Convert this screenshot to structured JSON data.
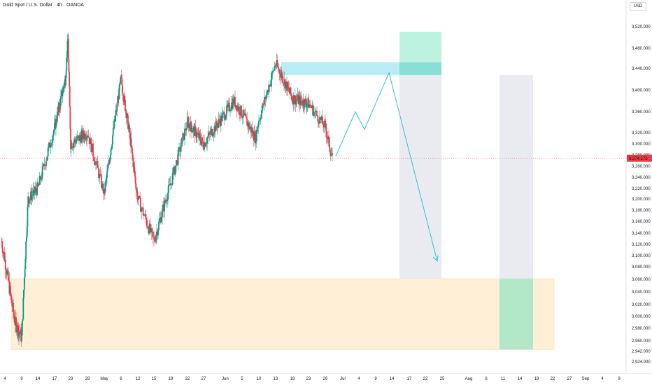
{
  "header": {
    "title": "Gold Spot / U.S. Dollar · 4h · OANDA",
    "currency_button": "USD"
  },
  "price_axis": {
    "ticks": [
      "3,520.000",
      "3,480.000",
      "3,440.000",
      "3,400.000",
      "3,360.000",
      "3,320.000",
      "3,300.000",
      "3,280.000",
      "3,260.000",
      "3,240.000",
      "3,220.000",
      "3,200.000",
      "3,180.000",
      "3,160.000",
      "3,140.000",
      "3,120.000",
      "3,100.000",
      "3,080.000",
      "3,060.000",
      "3,040.000",
      "3,020.000",
      "3,000.000",
      "2,980.000",
      "2,960.000",
      "2,942.000",
      "2,924.000"
    ],
    "current_price": "3,274.175",
    "current_price_color": "#f23645"
  },
  "time_axis": {
    "ticks": [
      "4",
      "9",
      "14",
      "17",
      "23",
      "28",
      "May",
      "6",
      "12",
      "15",
      "19",
      "22",
      "27",
      "Jun",
      "5",
      "10",
      "13",
      "18",
      "23",
      "26",
      "Jul",
      "4",
      "9",
      "14",
      "17",
      "22",
      "25",
      "Aug",
      "6",
      "11",
      "14",
      "19",
      "22",
      "27",
      "Sep",
      "4",
      "9"
    ]
  },
  "colors": {
    "up": "#089981",
    "down": "#f23645",
    "path": "#2ec4cc",
    "target_zone": "#b6f0dd",
    "stop_zone": "#b2ebf2",
    "gray_zone": "#e0e3eb",
    "support_zone": "#fde9c8"
  },
  "chart_data": {
    "type": "candlestick",
    "title": "Gold Spot / U.S. Dollar · 4h · OANDA",
    "xlabel": "",
    "ylabel": "",
    "ylim": [
      2924,
      3520
    ],
    "x_ticks": [
      "4",
      "9",
      "14",
      "17",
      "23",
      "28",
      "May",
      "6",
      "12",
      "15",
      "19",
      "22",
      "27",
      "Jun",
      "5",
      "10",
      "13",
      "18",
      "23",
      "26",
      "Jul",
      "4",
      "9",
      "14",
      "17",
      "22",
      "25",
      "Aug",
      "6",
      "11",
      "14",
      "19",
      "22",
      "27",
      "Sep",
      "4",
      "9"
    ],
    "last_price": 3274.175,
    "ohlc_waypoints": [
      {
        "date": "Apr 3",
        "close": 3125
      },
      {
        "date": "Apr 7",
        "close": 2990
      },
      {
        "date": "Apr 9",
        "close": 2965
      },
      {
        "date": "Apr 11",
        "close": 3200
      },
      {
        "date": "Apr 14",
        "close": 3220
      },
      {
        "date": "Apr 17",
        "close": 3330
      },
      {
        "date": "Apr 21",
        "close": 3420
      },
      {
        "date": "Apr 22",
        "close": 3495
      },
      {
        "date": "Apr 23",
        "close": 3300
      },
      {
        "date": "Apr 28",
        "close": 3320
      },
      {
        "date": "May 1",
        "close": 3210
      },
      {
        "date": "May 6",
        "close": 3420
      },
      {
        "date": "May 9",
        "close": 3320
      },
      {
        "date": "May 12",
        "close": 3200
      },
      {
        "date": "May 15",
        "close": 3125
      },
      {
        "date": "May 19",
        "close": 3230
      },
      {
        "date": "May 22",
        "close": 3340
      },
      {
        "date": "May 27",
        "close": 3300
      },
      {
        "date": "Jun 3",
        "close": 3380
      },
      {
        "date": "Jun 9",
        "close": 3310
      },
      {
        "date": "Jun 13",
        "close": 3450
      },
      {
        "date": "Jun 18",
        "close": 3385
      },
      {
        "date": "Jun 23",
        "close": 3375
      },
      {
        "date": "Jun 26",
        "close": 3330
      },
      {
        "date": "Jun 28",
        "close": 3274
      }
    ],
    "zones": [
      {
        "name": "target",
        "top": 3510,
        "bottom": 3452
      },
      {
        "name": "entry",
        "top": 3452,
        "bottom": 3428
      },
      {
        "name": "risk",
        "top": 3428,
        "bottom": 3061
      },
      {
        "name": "support",
        "top": 3061,
        "bottom": 2945
      },
      {
        "name": "long-target",
        "top": 3061,
        "bottom": 2945
      },
      {
        "name": "long-risk",
        "top": 3428,
        "bottom": 3061
      }
    ],
    "projection": [
      {
        "label": "start",
        "price": 3278
      },
      {
        "label": "up",
        "price": 3360
      },
      {
        "label": "down",
        "price": 3326
      },
      {
        "label": "peak",
        "price": 3432
      },
      {
        "label": "end",
        "price": 3090
      }
    ]
  }
}
